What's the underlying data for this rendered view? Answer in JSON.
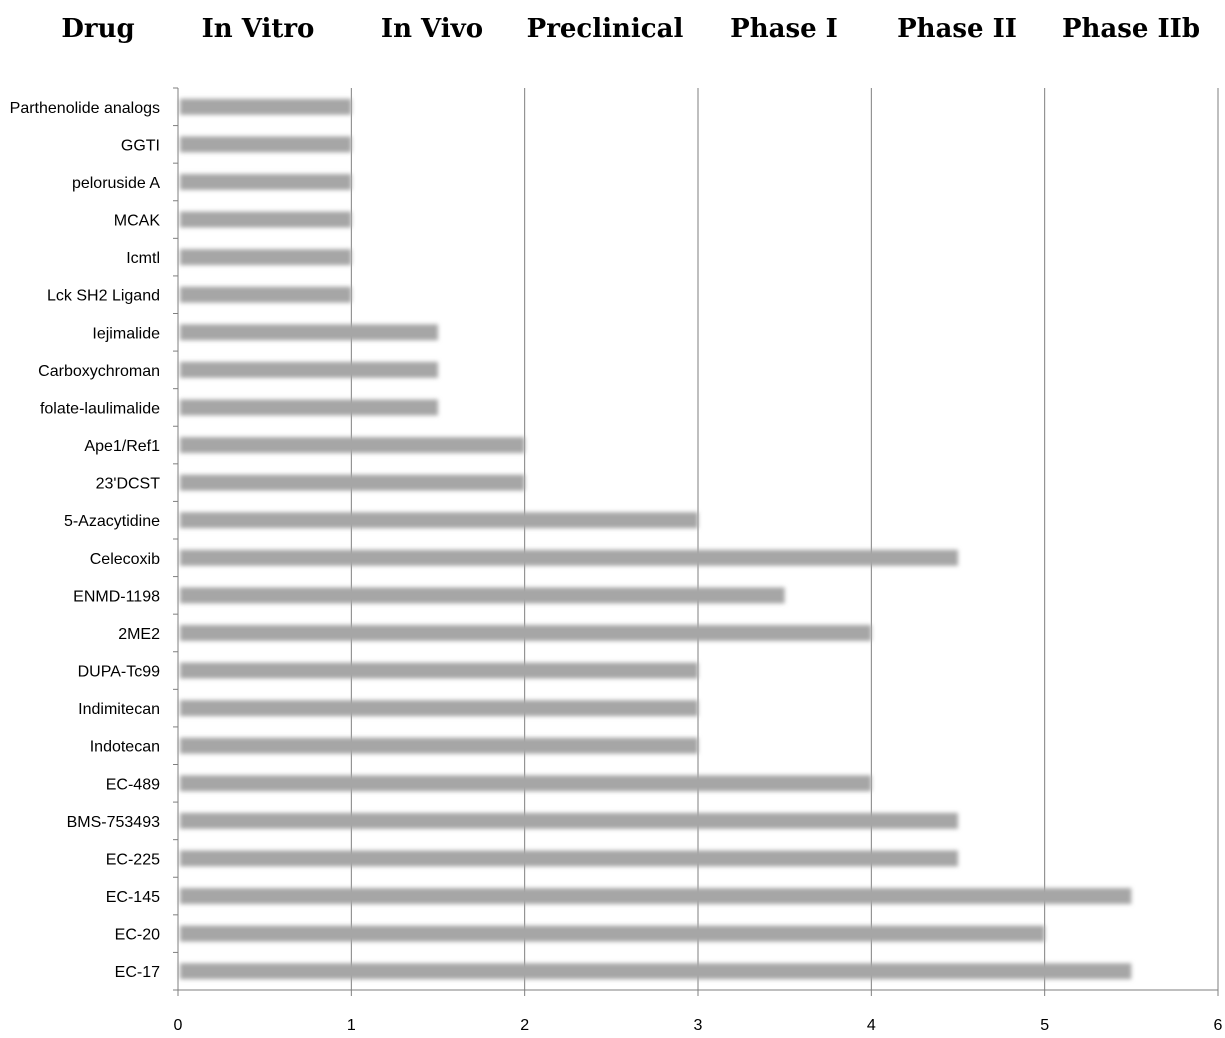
{
  "headers": [
    "Drug",
    "In Vitro",
    "In Vivo",
    "Preclinical",
    "Phase I",
    "Phase II",
    "Phase IIb"
  ],
  "chart_data": {
    "type": "bar",
    "orientation": "horizontal",
    "categories": [
      "Parthenolide analogs",
      "GGTI",
      "peloruside A",
      "MCAK",
      "Icmtl",
      "Lck SH2 Ligand",
      "Iejimalide",
      "Carboxychroman",
      "folate-laulimalide",
      "Ape1/Ref1",
      "23'DCST",
      "5-Azacytidine",
      "Celecoxib",
      "ENMD-1198",
      "2ME2",
      "DUPA-Tc99",
      "Indimitecan",
      "Indotecan",
      "EC-489",
      "BMS-753493",
      "EC-225",
      "EC-145",
      "EC-20",
      "EC-17"
    ],
    "values": [
      1,
      1,
      1,
      1,
      1,
      1,
      1.5,
      1.5,
      1.5,
      2,
      2,
      3,
      4.5,
      3.5,
      4,
      3,
      3,
      3,
      4,
      4.5,
      4.5,
      5.5,
      5,
      5.5
    ],
    "xlim": [
      0,
      6
    ],
    "xticks": [
      "0",
      "1",
      "2",
      "3",
      "4",
      "5",
      "6"
    ],
    "grid": "vertical major gridlines",
    "bar_color": "#a6a6a6"
  }
}
